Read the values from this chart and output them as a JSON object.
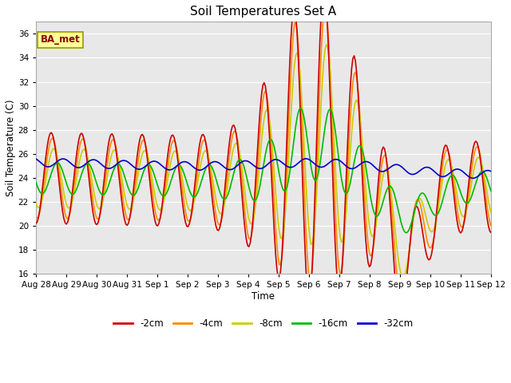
{
  "title": "Soil Temperatures Set A",
  "xlabel": "Time",
  "ylabel": "Soil Temperature (C)",
  "ylim": [
    16,
    37
  ],
  "yticks": [
    16,
    18,
    20,
    22,
    24,
    26,
    28,
    30,
    32,
    34,
    36
  ],
  "bg_color": "#e8e8e8",
  "plot_bg_color": "#e8e8e8",
  "legend_label": "BA_met",
  "series_labels": [
    "-2cm",
    "-4cm",
    "-8cm",
    "-16cm",
    "-32cm"
  ],
  "series_colors": [
    "#cc0000",
    "#ff8800",
    "#cccc00",
    "#00bb00",
    "#0000cc"
  ],
  "line_width": 1.2,
  "xtick_labels": [
    "Aug 28",
    "Aug 29",
    "Aug 30",
    "Aug 31",
    "Sep 1",
    "Sep 2",
    "Sep 3",
    "Sep 4",
    "Sep 5",
    "Sep 6",
    "Sep 7",
    "Sep 8",
    "Sep 9",
    "Sep 10",
    "Sep 11",
    "Sep 12"
  ],
  "figsize": [
    6.4,
    4.8
  ],
  "dpi": 100
}
